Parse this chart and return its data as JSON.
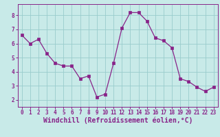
{
  "x": [
    0,
    1,
    2,
    3,
    4,
    5,
    6,
    7,
    8,
    9,
    10,
    11,
    12,
    13,
    14,
    15,
    16,
    17,
    18,
    19,
    20,
    21,
    22,
    23
  ],
  "y": [
    6.6,
    6.0,
    6.3,
    5.3,
    4.6,
    4.4,
    4.4,
    3.5,
    3.7,
    2.2,
    2.4,
    4.6,
    7.1,
    8.2,
    8.2,
    7.6,
    6.4,
    6.2,
    5.7,
    3.5,
    3.3,
    2.9,
    2.6,
    2.9
  ],
  "line_color": "#882288",
  "marker_color": "#882288",
  "bg_color": "#c8eae8",
  "grid_color": "#99cccc",
  "xlabel": "Windchill (Refroidissement éolien,°C)",
  "xlim": [
    -0.5,
    23.5
  ],
  "ylim": [
    1.5,
    8.8
  ],
  "xticks": [
    0,
    1,
    2,
    3,
    4,
    5,
    6,
    7,
    8,
    9,
    10,
    11,
    12,
    13,
    14,
    15,
    16,
    17,
    18,
    19,
    20,
    21,
    22,
    23
  ],
  "yticks": [
    2,
    3,
    4,
    5,
    6,
    7,
    8
  ],
  "tick_fontsize": 5.5,
  "xlabel_fontsize": 7.0,
  "spine_color": "#882288"
}
